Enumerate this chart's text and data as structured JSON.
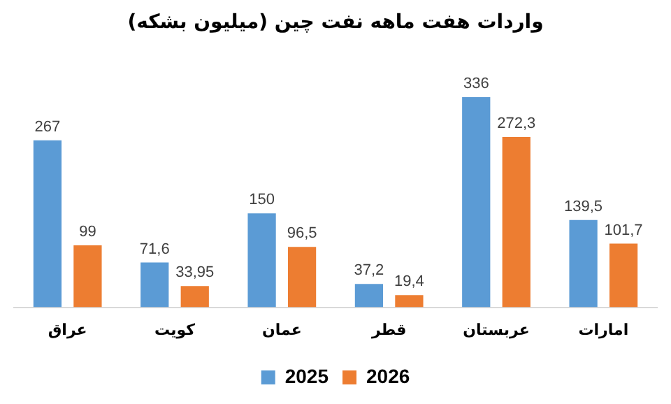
{
  "chart_data": {
    "type": "bar",
    "title": "واردات هفت ماهه نفت چین (میلیون بشکه)",
    "categories": [
      "عراق",
      "کویت",
      "عمان",
      "قطر",
      "عربستان",
      "امارات"
    ],
    "series": [
      {
        "name": "2025",
        "color": "#5b9bd5",
        "values": [
          267,
          71.6,
          150,
          37.2,
          336,
          139.5
        ],
        "value_labels": [
          "267",
          "71,6",
          "150",
          "37,2",
          "336",
          "139,5"
        ]
      },
      {
        "name": "2026",
        "color": "#ed7d31",
        "values": [
          99,
          33.95,
          96.5,
          19.4,
          272.3,
          101.7
        ],
        "value_labels": [
          "99",
          "33,95",
          "96,5",
          "19,4",
          "272,3",
          "101,7"
        ]
      }
    ],
    "legend": "bottom",
    "grid": false,
    "tick_labels": "x"
  }
}
